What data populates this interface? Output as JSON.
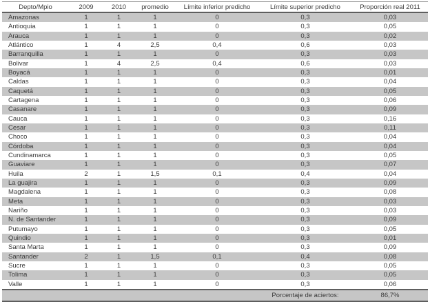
{
  "table": {
    "columns": [
      "Depto/Mpio",
      "2009",
      "2010",
      "promedio",
      "Límite inferior predicho",
      "Límite superior predicho",
      "Proporción real 2011"
    ],
    "rows": [
      [
        "Amazonas",
        "1",
        "1",
        "1",
        "0",
        "0,3",
        "0,03"
      ],
      [
        "Antioquia",
        "1",
        "1",
        "1",
        "0",
        "0,3",
        "0,05"
      ],
      [
        "Arauca",
        "1",
        "1",
        "1",
        "0",
        "0,3",
        "0,02"
      ],
      [
        "Atlántico",
        "1",
        "4",
        "2,5",
        "0,4",
        "0,6",
        "0,03"
      ],
      [
        "Barranquilla",
        "1",
        "1",
        "1",
        "0",
        "0,3",
        "0,03"
      ],
      [
        "Bolivar",
        "1",
        "4",
        "2,5",
        "0,4",
        "0,6",
        "0,03"
      ],
      [
        "Boyacá",
        "1",
        "1",
        "1",
        "0",
        "0,3",
        "0,01"
      ],
      [
        "Caldas",
        "1",
        "1",
        "1",
        "0",
        "0,3",
        "0,04"
      ],
      [
        "Caquetá",
        "1",
        "1",
        "1",
        "0",
        "0,3",
        "0,05"
      ],
      [
        "Cartagena",
        "1",
        "1",
        "1",
        "0",
        "0,3",
        "0,06"
      ],
      [
        "Casanare",
        "1",
        "1",
        "1",
        "0",
        "0,3",
        "0,09"
      ],
      [
        "Cauca",
        "1",
        "1",
        "1",
        "0",
        "0,3",
        "0,16"
      ],
      [
        "Cesar",
        "1",
        "1",
        "1",
        "0",
        "0,3",
        "0,11"
      ],
      [
        "Choco",
        "1",
        "1",
        "1",
        "0",
        "0,3",
        "0,04"
      ],
      [
        "Córdoba",
        "1",
        "1",
        "1",
        "0",
        "0,3",
        "0,04"
      ],
      [
        "Cundinamarca",
        "1",
        "1",
        "1",
        "0",
        "0,3",
        "0,05"
      ],
      [
        "Guaviare",
        "1",
        "1",
        "1",
        "0",
        "0,3",
        "0,07"
      ],
      [
        "Huila",
        "2",
        "1",
        "1,5",
        "0,1",
        "0,4",
        "0,04"
      ],
      [
        "La guajira",
        "1",
        "1",
        "1",
        "0",
        "0,3",
        "0,09"
      ],
      [
        "Magdalena",
        "1",
        "1",
        "1",
        "0",
        "0,3",
        "0,08"
      ],
      [
        "Meta",
        "1",
        "1",
        "1",
        "0",
        "0,3",
        "0,03"
      ],
      [
        "Nariño",
        "1",
        "1",
        "1",
        "0",
        "0,3",
        "0,03"
      ],
      [
        "N. de Santander",
        "1",
        "1",
        "1",
        "0",
        "0,3",
        "0,09"
      ],
      [
        "Putumayo",
        "1",
        "1",
        "1",
        "0",
        "0,3",
        "0,05"
      ],
      [
        "Quindio",
        "1",
        "1",
        "1",
        "0",
        "0,3",
        "0,01"
      ],
      [
        "Santa Marta",
        "1",
        "1",
        "1",
        "0",
        "0,3",
        "0,09"
      ],
      [
        "Santander",
        "2",
        "1",
        "1,5",
        "0,1",
        "0,4",
        "0,08"
      ],
      [
        "Sucre",
        "1",
        "1",
        "1",
        "0",
        "0,3",
        "0,05"
      ],
      [
        "Tolima",
        "1",
        "1",
        "1",
        "0",
        "0,3",
        "0,05"
      ],
      [
        "Valle",
        "1",
        "1",
        "1",
        "0",
        "0,3",
        "0,06"
      ]
    ],
    "footer": {
      "label": "Porcentaje de aciertos:",
      "value": "86,7%"
    }
  },
  "colors": {
    "row_shade": "#c6c6c6",
    "border_dark": "#5e5e5e",
    "border_light": "#909090",
    "text": "#3b3b3b"
  }
}
